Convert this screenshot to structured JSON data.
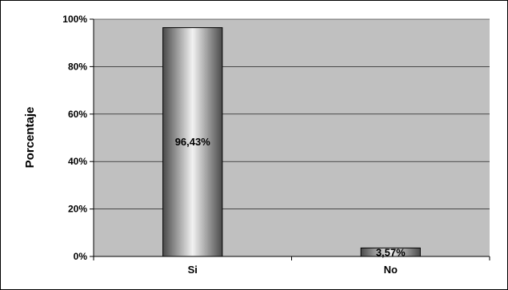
{
  "chart_data": {
    "type": "bar",
    "categories": [
      "Si",
      "No"
    ],
    "values": [
      96.43,
      3.57
    ],
    "data_labels": [
      "96,43%",
      "3,57%"
    ],
    "ylabel": "Porcentaje",
    "ylim": [
      0,
      100
    ],
    "yticks": [
      0,
      20,
      40,
      60,
      80,
      100
    ],
    "ytick_labels": [
      "0%",
      "20%",
      "40%",
      "60%",
      "80%",
      "100%"
    ],
    "grid": true,
    "legend": "none",
    "colors": {
      "plot_background": "#c0c0c0",
      "bar_dark": "#4a4a4a",
      "bar_light": "#f2f2f2",
      "grid": "#000000"
    }
  }
}
